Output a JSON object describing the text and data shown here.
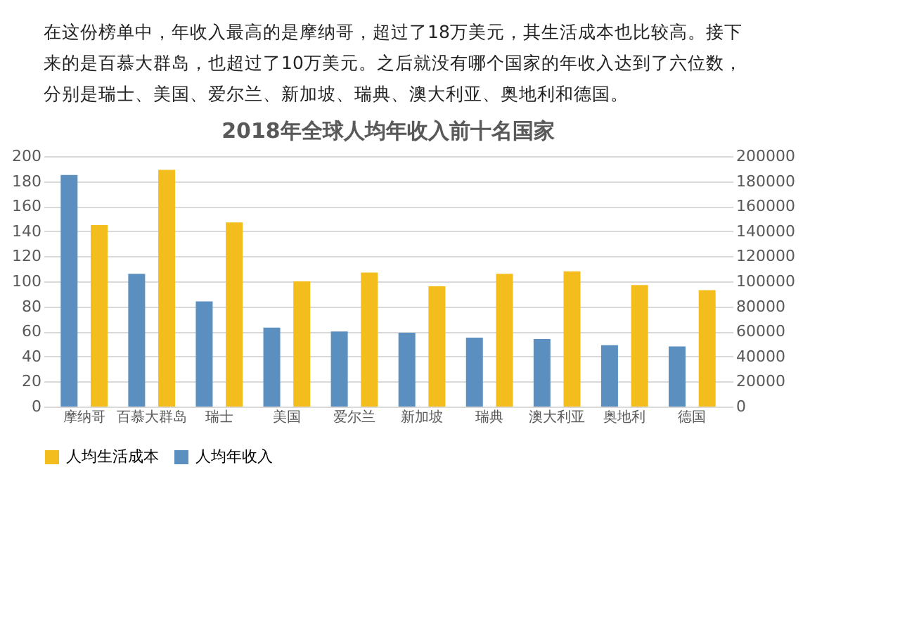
{
  "chart_data": {
    "type": "bar",
    "title": "2018年全球人均年收入前十名国家",
    "annotations": [
      "在这份榜单中，年收入最高的是摩纳哥，超过了18万美元，其生活成本也比较高。接下",
      "来的是百慕大群岛，也超过了10万美元。之后就没有哪个国家的年收入达到了六位数，",
      "分别是瑞士、美国、爱尔兰、新加坡、瑞典、澳大利亚、奥地利和德国。"
    ],
    "categories": [
      "摩纳哥",
      "百慕大群岛",
      "瑞士",
      "美国",
      "爱尔兰",
      "新加坡",
      "瑞典",
      "澳大利亚",
      "奥地利",
      "德国"
    ],
    "series": [
      {
        "name": "人均生活成本",
        "color": "#f2bd1d",
        "values": [
          145,
          189,
          147,
          100,
          107,
          96,
          106,
          108,
          97,
          93
        ]
      },
      {
        "name": "人均年收入",
        "color": "#5b8fbf",
        "axis": "y2",
        "values": [
          185000,
          106000,
          84000,
          63000,
          60000,
          59000,
          55000,
          54000,
          49000,
          48000
        ]
      }
    ],
    "ylim": [
      0,
      200
    ],
    "yticks": [
      0,
      20,
      40,
      60,
      80,
      100,
      120,
      140,
      160,
      180,
      200
    ],
    "y2lim": [
      0,
      200000
    ],
    "y2ticks": [
      0,
      20000,
      40000,
      60000,
      80000,
      100000,
      120000,
      140000,
      160000,
      180000,
      200000
    ],
    "grid": "y",
    "legend": "bottom"
  }
}
